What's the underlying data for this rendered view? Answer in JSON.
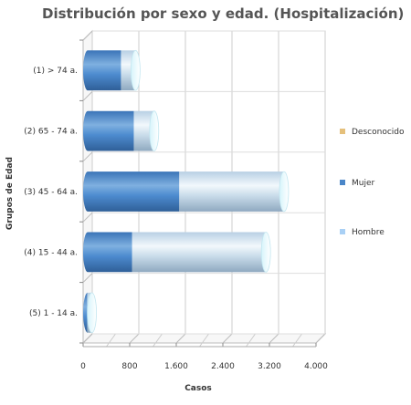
{
  "chart_data": {
    "type": "bar",
    "orientation": "horizontal",
    "stacked": true,
    "style_3d": "cylinder",
    "title": "Distribución por sexo y edad. (Hospitalización)",
    "xlabel": "Casos",
    "ylabel": "Grupos de Edad",
    "xlim": [
      0,
      4000
    ],
    "xticks": [
      0,
      800,
      1600,
      2400,
      3200,
      4000
    ],
    "xtick_labels": [
      "0",
      "800",
      "1.600",
      "2.400",
      "3.200",
      "4.000"
    ],
    "grid": true,
    "legend_position": "right",
    "categories": [
      "(1) > 74 a.",
      "(2) 65 - 74 a.",
      "(3) 45 - 64 a.",
      "(4) 15 - 44 a.",
      "(5) 1 - 14 a."
    ],
    "series": [
      {
        "name": "Mujer",
        "color": "#4a86c8",
        "values": [
          650,
          870,
          1650,
          840,
          70
        ]
      },
      {
        "name": "Hombre",
        "color": "#a9c6e0",
        "values": [
          250,
          350,
          1800,
          2300,
          80
        ]
      },
      {
        "name": "Desconocido",
        "color": "#e5c07b",
        "values": [
          0,
          0,
          0,
          0,
          0
        ]
      }
    ],
    "legend": [
      {
        "name": "Desconocido",
        "color": "#e5c07b"
      },
      {
        "name": "Mujer",
        "color": "#4a86c8"
      },
      {
        "name": "Hombre",
        "color": "#a9d0f5"
      }
    ]
  }
}
